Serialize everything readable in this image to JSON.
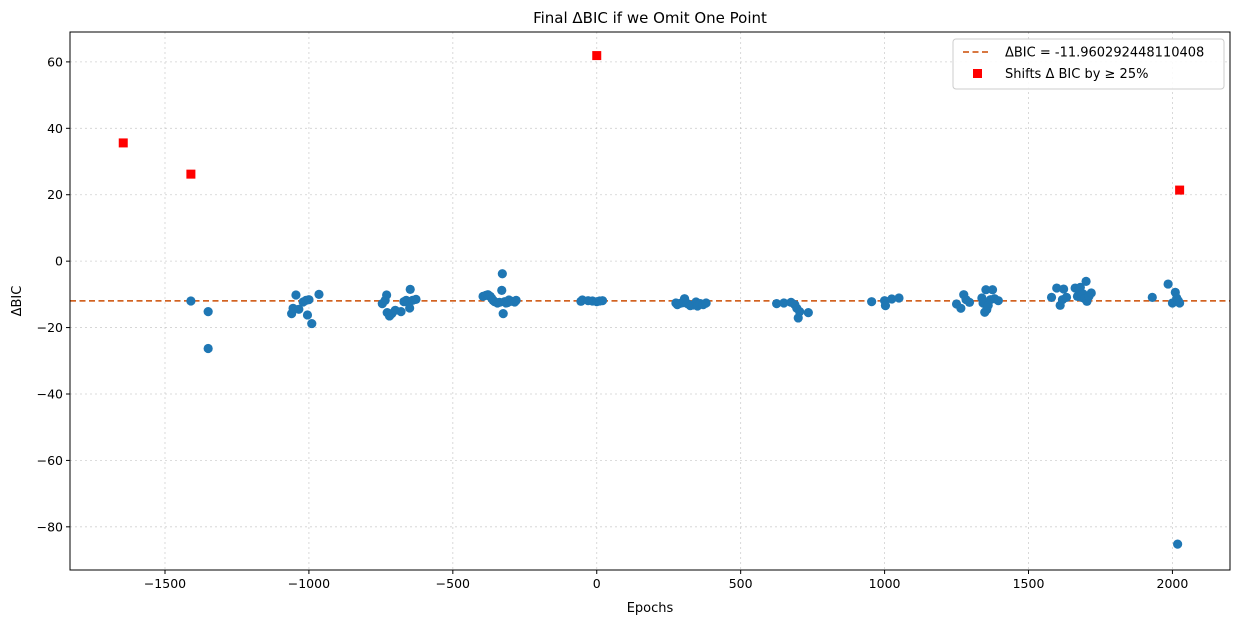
{
  "chart_data": {
    "type": "scatter",
    "title": "Final ΔBIC if we Omit One Point",
    "xlabel": "Epochs",
    "ylabel": "ΔBIC",
    "xlim": [
      -1830,
      2200
    ],
    "ylim": [
      -93,
      69
    ],
    "xticks": [
      -1500,
      -1000,
      -500,
      0,
      500,
      1000,
      1500,
      2000
    ],
    "xtick_labels": [
      "−1500",
      "−1000",
      "−500",
      "0",
      "500",
      "1000",
      "1500",
      "2000"
    ],
    "yticks": [
      -80,
      -60,
      -40,
      -20,
      0,
      20,
      40,
      60
    ],
    "ytick_labels": [
      "−80",
      "−60",
      "−40",
      "−20",
      "0",
      "20",
      "40",
      "60"
    ],
    "grid": true,
    "legend_position": "upper right",
    "reference_line": {
      "y": -11.960292448110408,
      "label": "ΔBIC = -11.960292448110408",
      "color": "#cc4c02",
      "style": "dashed"
    },
    "series": [
      {
        "marker": "circle",
        "color": "#1f77b4",
        "points": [
          [
            -1410,
            -12
          ],
          [
            -1350,
            -15.2
          ],
          [
            -1350,
            -26.3
          ],
          [
            -1060,
            -15.8
          ],
          [
            -1055,
            -14.2
          ],
          [
            -1045,
            -10.2
          ],
          [
            -1035,
            -14.5
          ],
          [
            -1020,
            -12.3
          ],
          [
            -1010,
            -11.8
          ],
          [
            -1000,
            -11.6
          ],
          [
            -1005,
            -16.2
          ],
          [
            -990,
            -18.8
          ],
          [
            -965,
            -10
          ],
          [
            -745,
            -12.8
          ],
          [
            -735,
            -11.8
          ],
          [
            -730,
            -10.2
          ],
          [
            -728,
            -15.5
          ],
          [
            -720,
            -16.5
          ],
          [
            -712,
            -15.8
          ],
          [
            -700,
            -14.8
          ],
          [
            -680,
            -15.2
          ],
          [
            -670,
            -12.2
          ],
          [
            -662,
            -11.8
          ],
          [
            -655,
            -12.5
          ],
          [
            -650,
            -14.1
          ],
          [
            -648,
            -8.5
          ],
          [
            -640,
            -11.8
          ],
          [
            -628,
            -11.5
          ],
          [
            -395,
            -10.6
          ],
          [
            -385,
            -10.3
          ],
          [
            -378,
            -10.1
          ],
          [
            -370,
            -10.6
          ],
          [
            -365,
            -11.2
          ],
          [
            -360,
            -11.8
          ],
          [
            -355,
            -12.2
          ],
          [
            -345,
            -12.6
          ],
          [
            -338,
            -12.4
          ],
          [
            -330,
            -8.8
          ],
          [
            -328,
            -3.8
          ],
          [
            -325,
            -15.8
          ],
          [
            -320,
            -12.2
          ],
          [
            -315,
            -12.6
          ],
          [
            -310,
            -12.5
          ],
          [
            -305,
            -11.7
          ],
          [
            -295,
            -12.1
          ],
          [
            -285,
            -12.3
          ],
          [
            -280,
            -11.8
          ],
          [
            -55,
            -12.1
          ],
          [
            -50,
            -11.7
          ],
          [
            -30,
            -11.9
          ],
          [
            -15,
            -12.0
          ],
          [
            0,
            -12.2
          ],
          [
            10,
            -12.0
          ],
          [
            20,
            -11.9
          ],
          [
            275,
            -12.6
          ],
          [
            280,
            -13.1
          ],
          [
            290,
            -12.7
          ],
          [
            300,
            -12.5
          ],
          [
            305,
            -11.3
          ],
          [
            315,
            -12.8
          ],
          [
            325,
            -13.4
          ],
          [
            335,
            -13.2
          ],
          [
            345,
            -12.3
          ],
          [
            350,
            -13.5
          ],
          [
            360,
            -12.8
          ],
          [
            370,
            -13.1
          ],
          [
            380,
            -12.6
          ],
          [
            625,
            -12.8
          ],
          [
            650,
            -12.6
          ],
          [
            675,
            -12.4
          ],
          [
            688,
            -13.1
          ],
          [
            695,
            -14.2
          ],
          [
            700,
            -17.1
          ],
          [
            705,
            -15.2
          ],
          [
            735,
            -15.5
          ],
          [
            955,
            -12.2
          ],
          [
            1000,
            -11.9
          ],
          [
            1003,
            -13.4
          ],
          [
            1025,
            -11.4
          ],
          [
            1050,
            -11.1
          ],
          [
            1250,
            -12.9
          ],
          [
            1265,
            -14.2
          ],
          [
            1275,
            -10.1
          ],
          [
            1283,
            -11.6
          ],
          [
            1295,
            -12.4
          ],
          [
            1338,
            -11.1
          ],
          [
            1342,
            -12.6
          ],
          [
            1348,
            -15.4
          ],
          [
            1352,
            -8.6
          ],
          [
            1355,
            -14.6
          ],
          [
            1360,
            -13.3
          ],
          [
            1368,
            -11.6
          ],
          [
            1375,
            -8.6
          ],
          [
            1382,
            -11.3
          ],
          [
            1395,
            -11.9
          ],
          [
            1580,
            -10.9
          ],
          [
            1598,
            -8.1
          ],
          [
            1610,
            -13.3
          ],
          [
            1618,
            -11.6
          ],
          [
            1622,
            -8.4
          ],
          [
            1632,
            -10.9
          ],
          [
            1662,
            -8.1
          ],
          [
            1670,
            -10.6
          ],
          [
            1675,
            -8.3
          ],
          [
            1680,
            -7.9
          ],
          [
            1685,
            -10.9
          ],
          [
            1690,
            -9.9
          ],
          [
            1695,
            -11.3
          ],
          [
            1700,
            -6.1
          ],
          [
            1703,
            -12.1
          ],
          [
            1710,
            -10.6
          ],
          [
            1718,
            -9.6
          ],
          [
            1930,
            -10.9
          ],
          [
            1985,
            -6.9
          ],
          [
            2000,
            -12.6
          ],
          [
            2010,
            -9.4
          ],
          [
            2015,
            -11.1
          ],
          [
            2020,
            -11.9
          ],
          [
            2025,
            -12.6
          ],
          [
            2018,
            -85.2
          ]
        ]
      },
      {
        "name": "Shifts Δ BIC by ≥ 25%",
        "marker": "square",
        "color": "#ff0000",
        "points": [
          [
            -1645,
            35.6
          ],
          [
            -1410,
            26.2
          ],
          [
            0,
            61.9
          ],
          [
            2025,
            21.4
          ]
        ]
      }
    ]
  }
}
